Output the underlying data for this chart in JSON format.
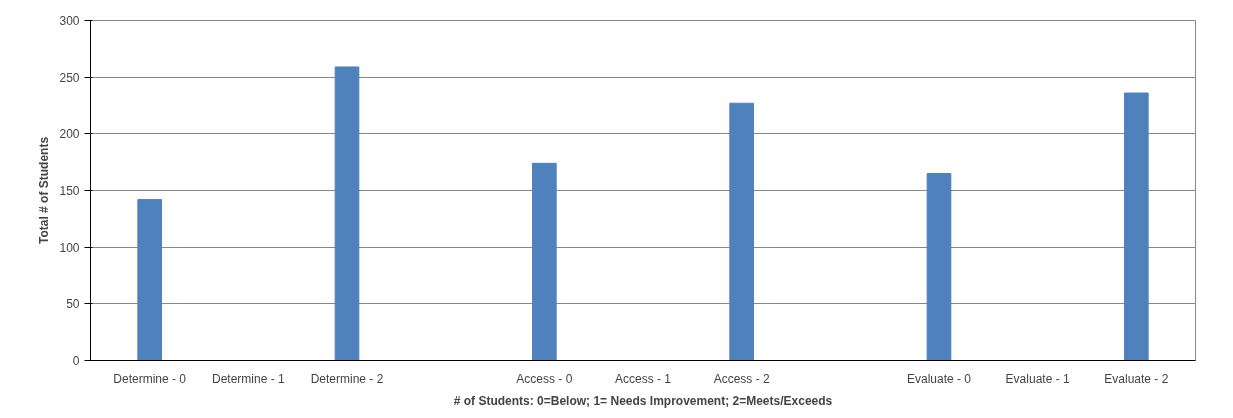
{
  "chart_data": {
    "type": "bar",
    "xlabel": "# of Students: 0=Below; 1= Needs Improvement; 2=Meets/Exceeds",
    "ylabel": "Total # of Students",
    "categories": [
      "Determine - 0",
      "Determine - 1",
      "Determine - 2",
      null,
      "Access - 0",
      "Access - 1",
      "Access - 2",
      null,
      "Evaluate - 0",
      "Evaluate - 1",
      "Evaluate - 2"
    ],
    "values": [
      142,
      0,
      259,
      null,
      174,
      0,
      227,
      null,
      165,
      0,
      236
    ],
    "color": "#4f81bd",
    "ylim": [
      0,
      300
    ],
    "yticks": [
      0,
      50,
      100,
      150,
      200,
      250,
      300
    ],
    "grid": "y"
  }
}
